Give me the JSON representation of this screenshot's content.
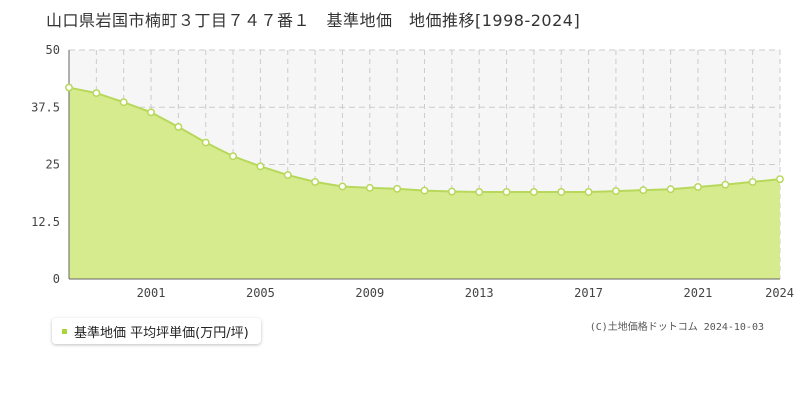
{
  "page": {
    "title": "山口県岩国市楠町３丁目７４７番１　基準地価　地価推移[1998-2024]",
    "copyright": "(C)土地価格ドットコム 2024-10-03"
  },
  "legend": {
    "label": "基準地価 平均坪単価(万円/坪)",
    "marker_color": "#a8d63a"
  },
  "colors": {
    "line": "#b7d85a",
    "fill": "#d6eb8e",
    "point_fill": "#ffffff",
    "grid": "#cccccc",
    "band": "#f6f6f6"
  },
  "chart_data": {
    "type": "area",
    "title": "山口県岩国市楠町３丁目７４７番１　基準地価　地価推移[1998-2024]",
    "xlabel": "",
    "ylabel": "",
    "xlim": [
      1998,
      2024
    ],
    "ylim": [
      0,
      50
    ],
    "yticks": [
      "0",
      "12.5",
      "25",
      "37.5",
      "50"
    ],
    "xticks": [
      "2001",
      "2005",
      "2009",
      "2013",
      "2017",
      "2021",
      "2024"
    ],
    "grid": true,
    "legend_position": "bottom-left",
    "x": [
      1998,
      1999,
      2000,
      2001,
      2002,
      2003,
      2004,
      2005,
      2006,
      2007,
      2008,
      2009,
      2010,
      2011,
      2012,
      2013,
      2014,
      2015,
      2016,
      2017,
      2018,
      2019,
      2020,
      2021,
      2022,
      2023,
      2024
    ],
    "series": [
      {
        "name": "基準地価 平均坪単価(万円/坪)",
        "values": [
          41.8,
          40.6,
          38.6,
          36.4,
          33.2,
          29.8,
          26.8,
          24.6,
          22.7,
          21.2,
          20.2,
          19.9,
          19.7,
          19.3,
          19.1,
          19.0,
          19.0,
          19.0,
          19.0,
          19.0,
          19.2,
          19.4,
          19.6,
          20.1,
          20.6,
          21.2,
          21.8
        ]
      }
    ]
  }
}
